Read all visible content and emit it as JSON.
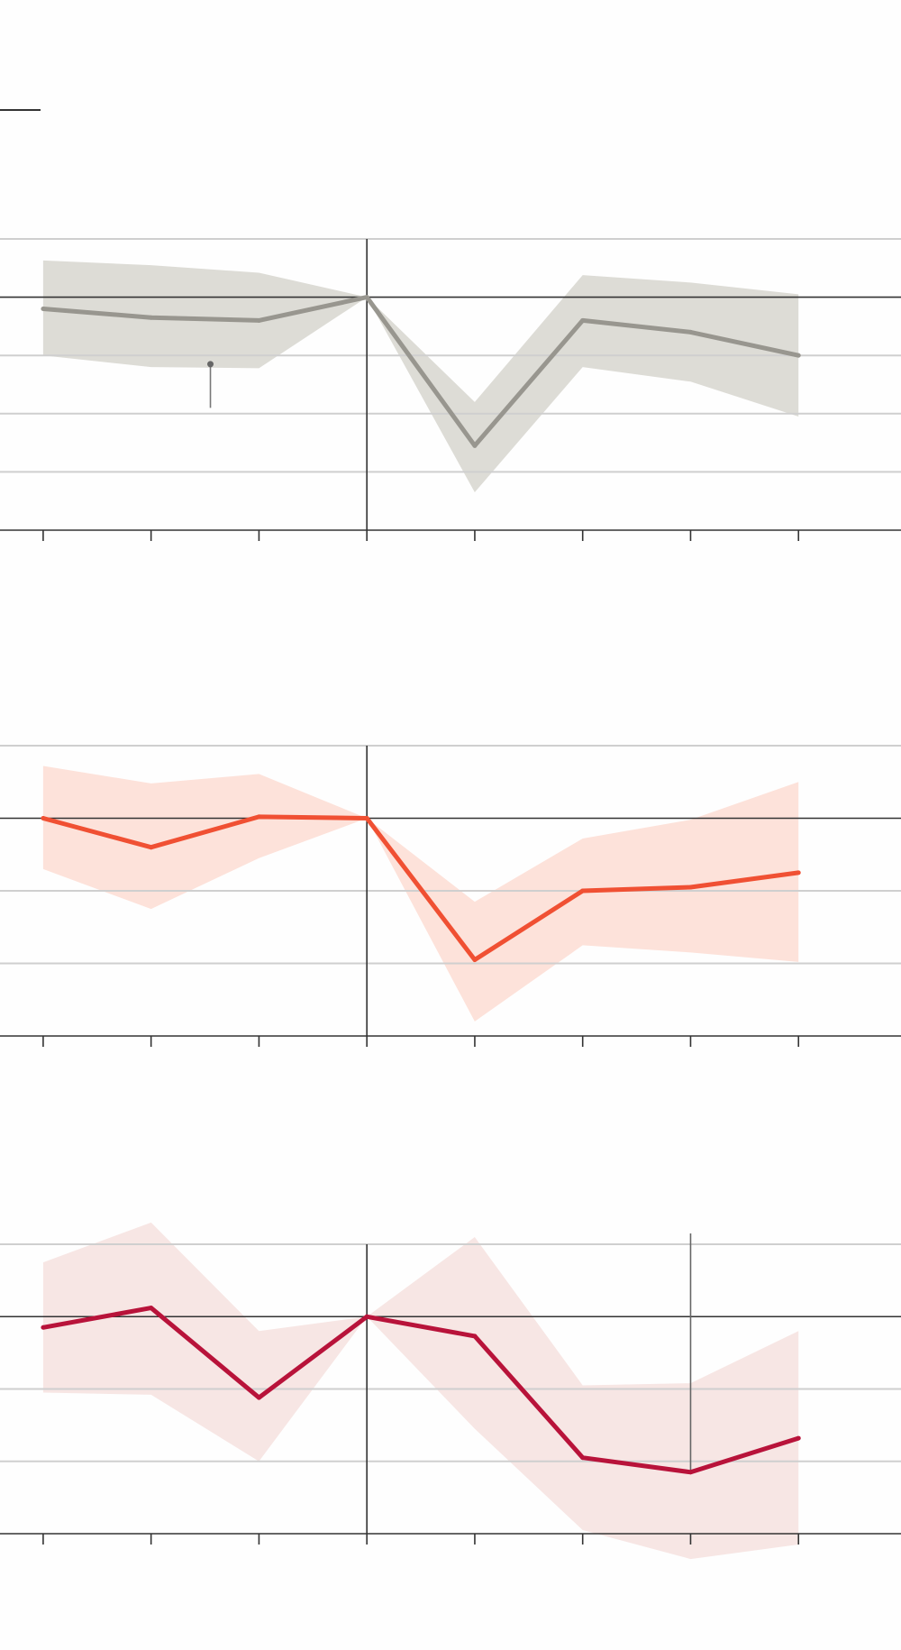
{
  "chart_data": [
    {
      "type": "line",
      "name": "panel-1",
      "band_style": "confidence-band",
      "color": "#98968f",
      "band_color": "#dddcd6",
      "x": [
        -3,
        -2,
        -1,
        0,
        1,
        2,
        3,
        4
      ],
      "series": [
        {
          "name": "estimate",
          "values": [
            -0.2,
            -0.35,
            -0.4,
            0,
            -2.55,
            -0.4,
            -0.6,
            -1.0
          ]
        },
        {
          "name": "upper",
          "values": [
            0.63,
            0.55,
            0.42,
            0,
            -1.8,
            0.38,
            0.25,
            0.05
          ]
        },
        {
          "name": "lower",
          "values": [
            -1.0,
            -1.2,
            -1.22,
            0,
            -3.35,
            -1.2,
            -1.45,
            -2.05
          ]
        }
      ],
      "ylim": [
        -4,
        1
      ],
      "xlim": [
        -3.4,
        4.95
      ],
      "gridlines": [
        1,
        -1,
        -2,
        -3
      ],
      "baseline": 0,
      "annotation_marker": {
        "x": -1.45,
        "y_from": -1.15,
        "y_to": -1.9
      }
    },
    {
      "type": "line",
      "name": "panel-2",
      "band_style": "confidence-band",
      "color": "#f05033",
      "band_color": "#fde2da",
      "x": [
        -3,
        -2,
        -1,
        0,
        1,
        2,
        3,
        4
      ],
      "series": [
        {
          "name": "estimate",
          "values": [
            0,
            -0.4,
            0.02,
            0,
            -1.95,
            -1.0,
            -0.95,
            -0.75
          ]
        },
        {
          "name": "upper",
          "values": [
            0.72,
            0.48,
            0.61,
            0,
            -1.15,
            -0.28,
            -0.02,
            0.5
          ]
        },
        {
          "name": "lower",
          "values": [
            -0.7,
            -1.25,
            -0.55,
            0,
            -2.8,
            -1.75,
            -1.85,
            -1.98
          ]
        }
      ],
      "ylim": [
        -3,
        1
      ],
      "xlim": [
        -3.4,
        4.95
      ],
      "gridlines": [
        1,
        -1,
        -2
      ],
      "baseline": 0
    },
    {
      "type": "line",
      "name": "panel-3",
      "band_style": "confidence-band",
      "color": "#b8133a",
      "band_color": "#f7e6e4",
      "x": [
        -3,
        -2,
        -1,
        0,
        1,
        2,
        3,
        4
      ],
      "series": [
        {
          "name": "estimate",
          "values": [
            -0.15,
            0.12,
            -1.12,
            0,
            -0.27,
            -1.95,
            -2.15,
            -1.68
          ]
        },
        {
          "name": "upper",
          "values": [
            0.75,
            1.3,
            -0.2,
            0,
            1.1,
            -0.95,
            -0.92,
            -0.2
          ]
        },
        {
          "name": "lower",
          "values": [
            -1.05,
            -1.08,
            -2.0,
            0,
            -1.55,
            -2.95,
            -3.35,
            -3.15
          ]
        }
      ],
      "ylim": [
        -3,
        1
      ],
      "xlim": [
        -3.4,
        4.95
      ],
      "gridlines": [
        1,
        -1,
        -2
      ],
      "baseline": 0,
      "reference_line": {
        "x": 3,
        "y_from": -2.15,
        "y_to": 1.15
      }
    }
  ]
}
